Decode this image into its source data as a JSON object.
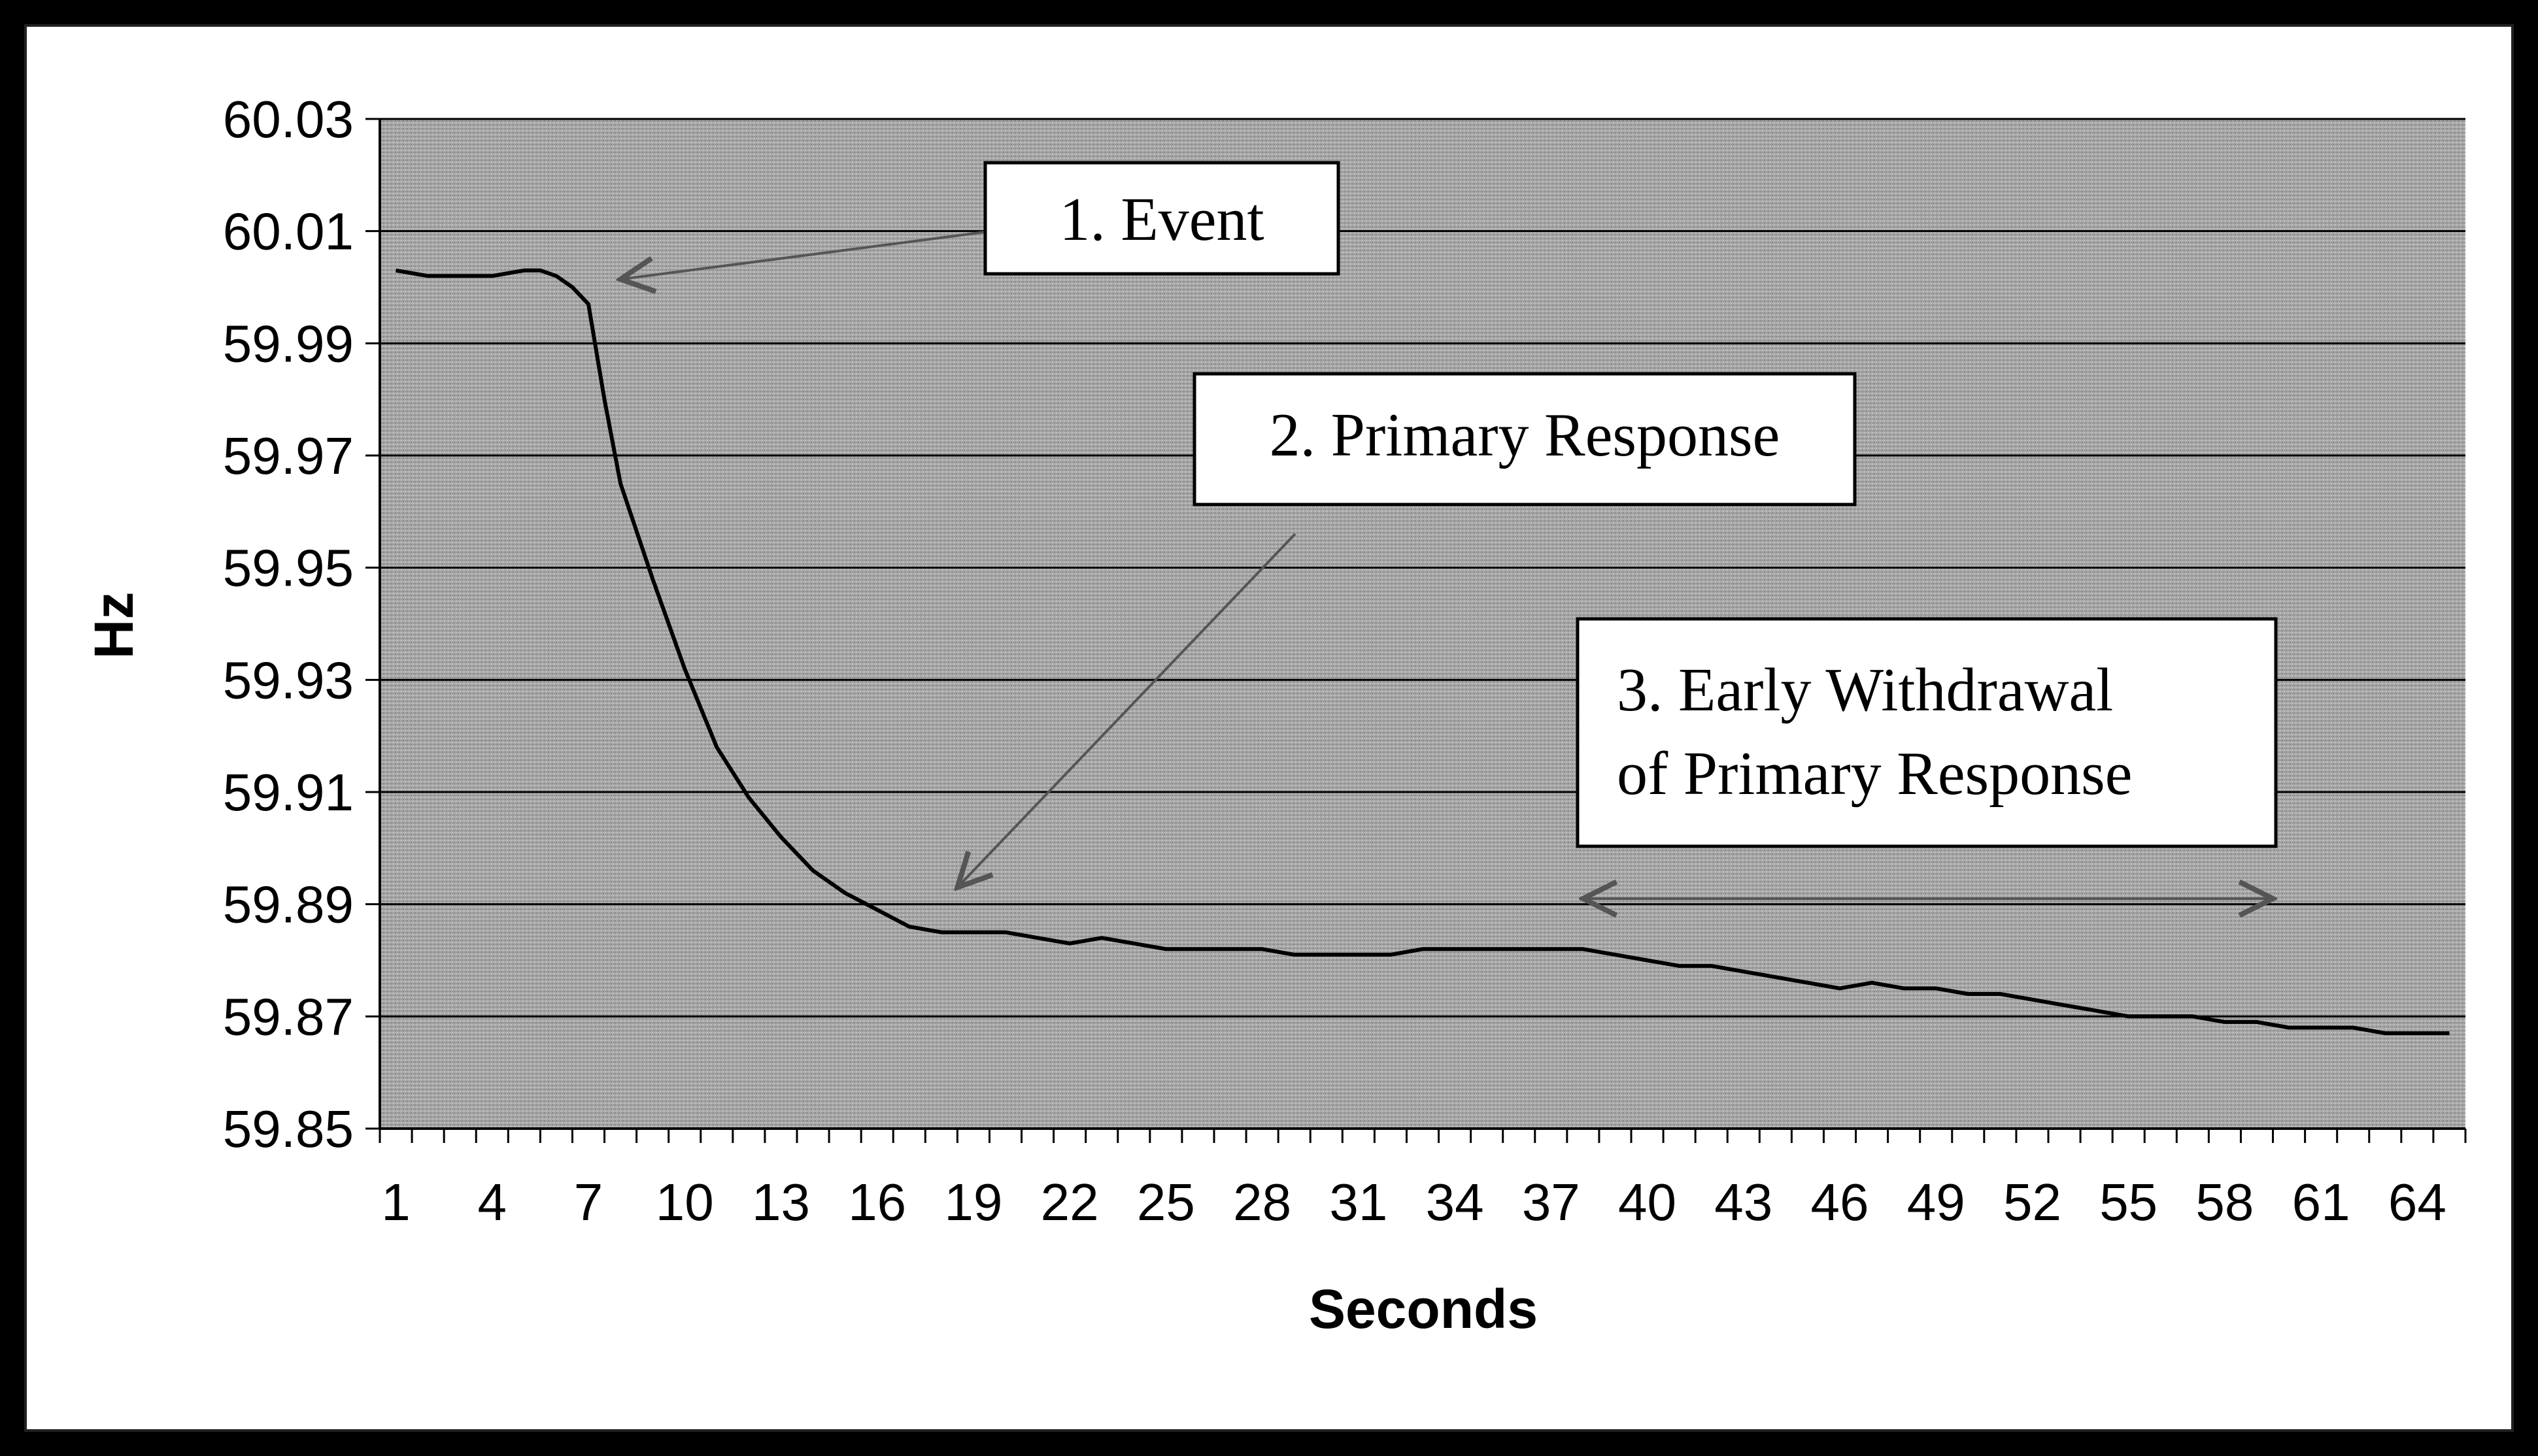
{
  "chart_data": {
    "type": "line",
    "xlabel": "Seconds",
    "ylabel": "Hz",
    "ylim": [
      59.85,
      60.03
    ],
    "xlim": [
      1,
      65
    ],
    "y_ticks": [
      "60.03",
      "60.01",
      "59.99",
      "59.97",
      "59.95",
      "59.93",
      "59.91",
      "59.89",
      "59.87",
      "59.85"
    ],
    "x_ticks": [
      "1",
      "4",
      "7",
      "10",
      "13",
      "16",
      "19",
      "22",
      "25",
      "28",
      "31",
      "34",
      "37",
      "40",
      "43",
      "46",
      "49",
      "52",
      "55",
      "58",
      "61",
      "64"
    ],
    "grid": true,
    "series": [
      {
        "x": [
          1,
          2,
          3,
          4,
          5,
          5.5,
          6,
          6.5,
          7,
          7.5,
          8,
          9,
          10,
          11,
          12,
          13,
          14,
          15,
          16,
          17,
          18,
          19,
          20,
          21,
          22,
          23,
          24,
          25,
          26,
          27,
          28,
          29,
          30,
          31,
          32,
          33,
          34,
          35,
          36,
          37,
          38,
          39,
          40,
          41,
          42,
          43,
          44,
          45,
          46,
          47,
          48,
          49,
          50,
          51,
          52,
          53,
          54,
          55,
          56,
          57,
          58,
          59,
          60,
          61,
          62,
          63,
          64,
          65
        ],
        "values": [
          60.003,
          60.002,
          60.002,
          60.002,
          60.003,
          60.003,
          60.002,
          60.0,
          59.997,
          59.98,
          59.965,
          59.948,
          59.932,
          59.918,
          59.909,
          59.902,
          59.896,
          59.892,
          59.889,
          59.886,
          59.885,
          59.885,
          59.885,
          59.884,
          59.883,
          59.884,
          59.883,
          59.882,
          59.882,
          59.882,
          59.882,
          59.881,
          59.881,
          59.881,
          59.881,
          59.882,
          59.882,
          59.882,
          59.882,
          59.882,
          59.882,
          59.881,
          59.88,
          59.879,
          59.879,
          59.878,
          59.877,
          59.876,
          59.875,
          59.876,
          59.875,
          59.875,
          59.874,
          59.874,
          59.873,
          59.872,
          59.871,
          59.87,
          59.87,
          59.87,
          59.869,
          59.869,
          59.868,
          59.868,
          59.868,
          59.867,
          59.867,
          59.867
        ]
      }
    ],
    "annotations": [
      {
        "text": "1. Event",
        "points_to": [
          8,
          60.002
        ]
      },
      {
        "text": "2. Primary Response",
        "points_to": [
          18.5,
          59.893
        ]
      },
      {
        "text": "3. Early Withdrawal of Primary Response",
        "lines": [
          "3. Early Withdrawal",
          "of Primary Response"
        ],
        "span": [
          38,
          59.5
        ],
        "span_y": 59.891
      }
    ]
  }
}
